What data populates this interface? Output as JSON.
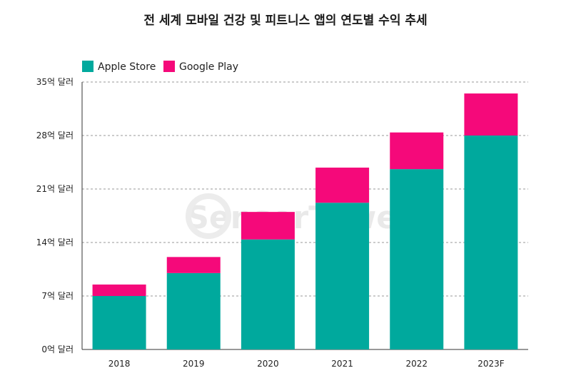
{
  "chart_data": {
    "type": "bar",
    "stacked": true,
    "title": "전 세계 모바일 건강 및 피트니스 앱의 연도별 수익 추세",
    "categories": [
      "2018",
      "2019",
      "2020",
      "2021",
      "2022",
      "2023F"
    ],
    "series": [
      {
        "name": "Apple Store",
        "color": "#00A99D",
        "values": [
          7.0,
          10.0,
          14.4,
          19.2,
          23.6,
          28.0
        ]
      },
      {
        "name": "Google Play",
        "color": "#F5097A",
        "values": [
          1.5,
          2.1,
          3.6,
          4.6,
          4.8,
          5.5
        ]
      }
    ],
    "yticks": [
      "0억 달러",
      "7억 달러",
      "14억 달러",
      "21억 달러",
      "28억 달러",
      "35억 달러"
    ],
    "ylim": [
      0,
      35
    ],
    "grid": true,
    "legend_position": "top-left",
    "watermark": "SensorTower"
  }
}
